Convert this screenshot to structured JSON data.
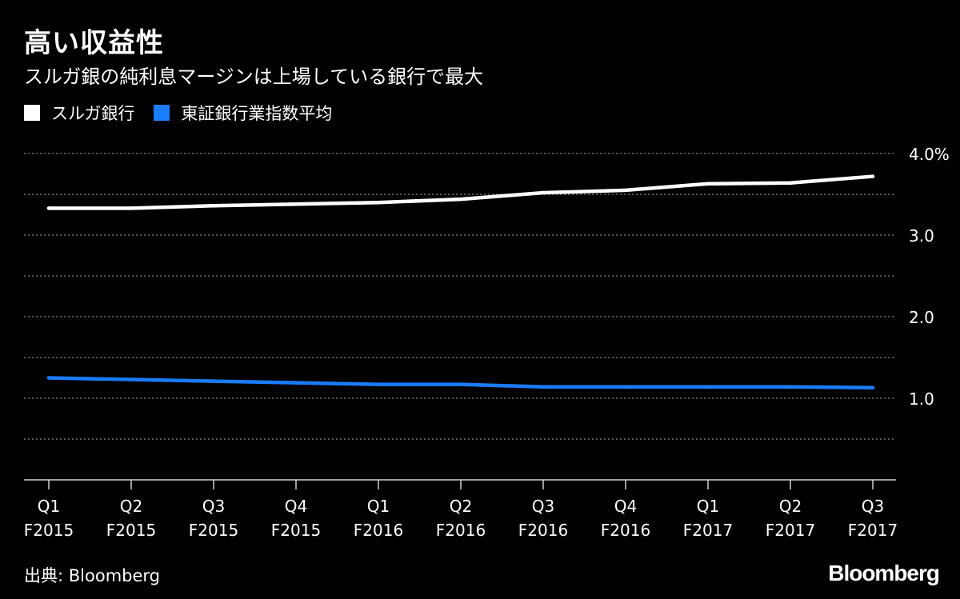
{
  "title": "高い収益性",
  "subtitle": "スルガ銀の純利息マージンは上場している銀行で最大",
  "source": "出典: Bloomberg",
  "logo": "Bloomberg",
  "chart_data": {
    "type": "line",
    "title": "高い収益性",
    "subtitle": "スルガ銀の純利息マージンは上場している銀行で最大",
    "xlabel": "",
    "ylabel": "",
    "categories": [
      [
        "Q1",
        "F2015"
      ],
      [
        "Q2",
        "F2015"
      ],
      [
        "Q3",
        "F2015"
      ],
      [
        "Q4",
        "F2015"
      ],
      [
        "Q1",
        "F2016"
      ],
      [
        "Q2",
        "F2016"
      ],
      [
        "Q3",
        "F2016"
      ],
      [
        "Q4",
        "F2016"
      ],
      [
        "Q1",
        "F2017"
      ],
      [
        "Q2",
        "F2017"
      ],
      [
        "Q3",
        "F2017"
      ]
    ],
    "ylim": [
      0,
      4.0
    ],
    "yticks": [
      {
        "value": 4.0,
        "label": "4.0%"
      },
      {
        "value": 3.0,
        "label": "3.0"
      },
      {
        "value": 2.0,
        "label": "2.0"
      },
      {
        "value": 1.0,
        "label": "1.0"
      }
    ],
    "gridlines": [
      0.5,
      1.0,
      1.5,
      2.0,
      2.5,
      3.0,
      3.5,
      4.0
    ],
    "grid": true,
    "legend_position": "top-left",
    "series": [
      {
        "name": "スルガ銀行",
        "color": "#ffffff",
        "values": [
          3.33,
          3.33,
          3.36,
          3.38,
          3.4,
          3.44,
          3.52,
          3.55,
          3.63,
          3.64,
          3.72
        ]
      },
      {
        "name": "東証銀行業指数平均",
        "color": "#1a7cff",
        "values": [
          1.25,
          1.23,
          1.21,
          1.19,
          1.17,
          1.17,
          1.14,
          1.14,
          1.14,
          1.14,
          1.13
        ]
      }
    ]
  }
}
